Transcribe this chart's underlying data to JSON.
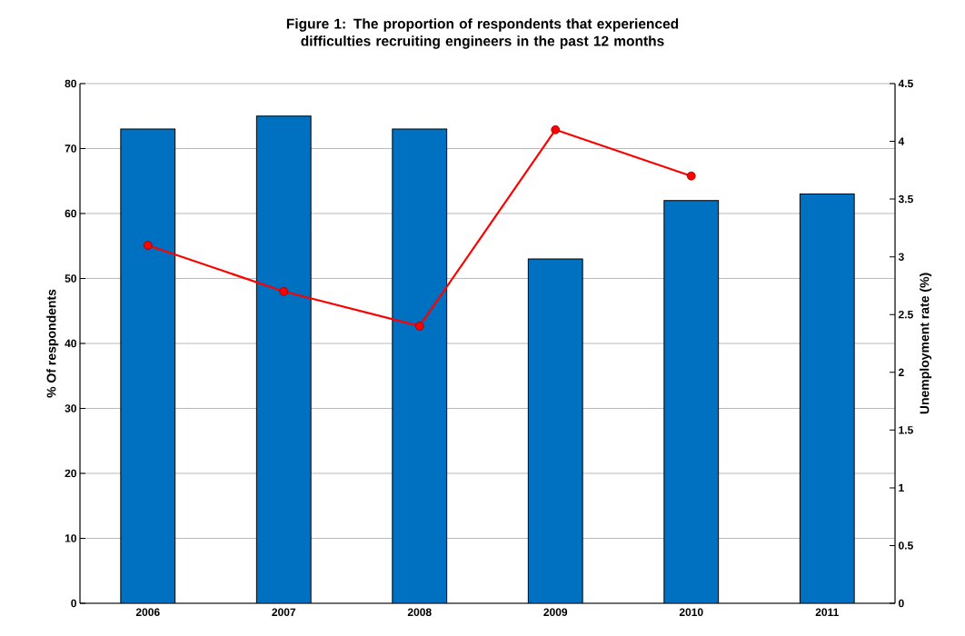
{
  "chart_data": {
    "type": "bar",
    "title": "Figure 1: The proportion of respondents that experienced difficulties recruiting engineers in the past 12 months",
    "ylabel": "% Of respondents",
    "y2label": "Unemployment rate (%)",
    "categories": [
      "2006",
      "2007",
      "2008",
      "2009",
      "2010",
      "2011"
    ],
    "series": [
      {
        "color": "#0070c0",
        "values": [
          73,
          75,
          73,
          53,
          62,
          63
        ]
      },
      {
        "type": "line",
        "axis": "y2",
        "color": "#ff0000",
        "values": [
          3.1,
          2.7,
          2.4,
          4.1,
          3.7,
          null
        ]
      }
    ],
    "ylim": [
      0,
      80
    ],
    "yticks": [
      0,
      10,
      20,
      30,
      40,
      50,
      60,
      70,
      80
    ],
    "y2lim": [
      0,
      4.5
    ],
    "y2ticks": [
      0,
      0.5,
      1,
      1.5,
      2,
      2.5,
      3,
      3.5,
      4,
      4.5
    ],
    "grid": "y",
    "marker": "circle",
    "line_style": "solid"
  }
}
